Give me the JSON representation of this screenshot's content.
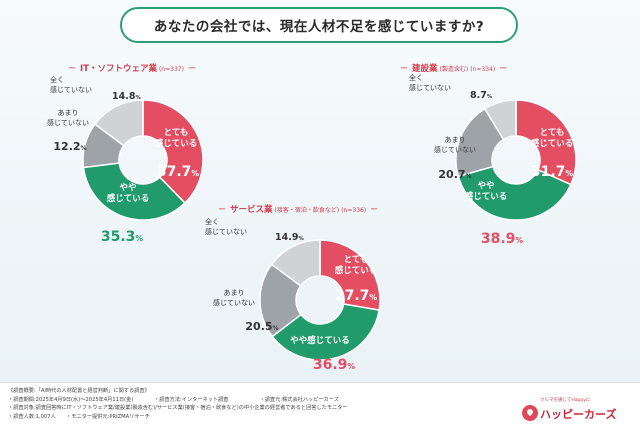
{
  "title": "あなたの会社では、現在人材不足を感じていますか?",
  "colors": {
    "totemo": "#e34e63",
    "yaya": "#219a6c",
    "amari": "#9ea3a8",
    "mattaku": "#cfd3d6",
    "accent": "#d23a4c",
    "title_border": "#2f9f73"
  },
  "chart_data": [
    {
      "type": "pie",
      "name": "IT・ソフトウェア業",
      "n_label": "(n=337)",
      "categories": [
        "とても感じている",
        "やや感じている",
        "あまり感じていない",
        "全く感じていない"
      ],
      "values": [
        37.7,
        35.3,
        12.2,
        14.8
      ],
      "value_labels": [
        "37.7%",
        "35.3%",
        "12.2%",
        "14.8%"
      ]
    },
    {
      "type": "pie",
      "name": "建設業",
      "sub": "(製造含む)",
      "n_label": "(n=334)",
      "categories": [
        "とても感じている",
        "やや感じている",
        "あまり感じていない",
        "全く感じていない"
      ],
      "values": [
        31.7,
        38.9,
        20.7,
        8.7
      ],
      "value_labels": [
        "31.7%",
        "38.9%",
        "20.7%",
        "8.7%"
      ]
    },
    {
      "type": "pie",
      "name": "サービス業",
      "sub": "(接客・宿泊・飲食など)",
      "n_label": "(n=336)",
      "categories": [
        "とても感じている",
        "やや感じている",
        "あまり感じていない",
        "全く感じていない"
      ],
      "values": [
        27.7,
        36.9,
        20.5,
        14.9
      ],
      "value_labels": [
        "27.7%",
        "36.9%",
        "20.5%",
        "14.9%"
      ]
    }
  ],
  "labels": {
    "totemo": [
      "とても",
      "感じている"
    ],
    "yaya": [
      "やや",
      "感じている"
    ],
    "yaya_inline": "やや感じている",
    "amari": [
      "あまり",
      "感じていない"
    ],
    "mattaku": [
      "全く",
      "感じていない"
    ],
    "mattaku_inline": "感じていない"
  },
  "footer": {
    "lines": [
      "《調査概要:「AI時代の人材配置と経営判断」に関する調査》",
      "・調査期間:2025年4月9日(水)〜2025年4月11日(金)　　　　・調査方法:インターネット調査　　　　　　・調査元:株式会社ハッピーカーズ",
      "・調査対象:調査回答時にIT・ソフトウェア業/建設業(製造含む)/サービス業(接客・宿泊・飲食など)の中小企業の経営者であると回答したモニター",
      "・調査人数:1,007人　　・モニター提供元:PRIZMAリサーチ"
    ],
    "logo_tagline": "クルマを通じてHappyに",
    "logo_text": "ハッピーカーズ"
  }
}
